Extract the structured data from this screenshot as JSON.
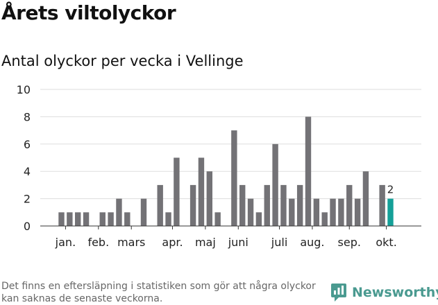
{
  "header": {
    "title": "Årets viltolyckor",
    "subtitle": "Antal olyckor per vecka i Vellinge"
  },
  "footer": {
    "note": "Det finns en eftersläpning i statistiken som gör att några olyckor kan saknas de senaste veckorna.",
    "brand": "Newsworthy"
  },
  "colors": {
    "bar": "#737276",
    "highlight": "#14a098",
    "grid": "#dddddd",
    "brand": "#4a9a90"
  },
  "icons": {
    "brand_logo": "chart-bubble-icon"
  },
  "chart_data": {
    "type": "bar",
    "title": "Antal olyckor per vecka i Vellinge",
    "xlabel": "",
    "ylabel": "",
    "ylim": [
      0,
      10
    ],
    "yticks": [
      0,
      2,
      4,
      6,
      8,
      10
    ],
    "grid": true,
    "weeks": [
      1,
      2,
      3,
      4,
      5,
      6,
      7,
      8,
      9,
      10,
      11,
      12,
      13,
      14,
      15,
      16,
      17,
      18,
      19,
      20,
      21,
      22,
      23,
      24,
      25,
      26,
      27,
      28,
      29,
      30,
      31,
      32,
      33,
      34,
      35,
      36,
      37,
      38,
      39,
      40,
      41,
      42
    ],
    "values": [
      1,
      1,
      1,
      1,
      0,
      1,
      1,
      2,
      1,
      0,
      2,
      0,
      3,
      1,
      5,
      0,
      3,
      5,
      4,
      1,
      0,
      7,
      3,
      2,
      1,
      3,
      6,
      3,
      2,
      3,
      8,
      2,
      1,
      2,
      2,
      3,
      2,
      4,
      0,
      3,
      2,
      0
    ],
    "highlight_week": 41,
    "highlight_label": "2",
    "month_labels": [
      {
        "label": "jan.",
        "week": 1.5
      },
      {
        "label": "feb.",
        "week": 5.5
      },
      {
        "label": "mars",
        "week": 9.5
      },
      {
        "label": "apr.",
        "week": 14.5
      },
      {
        "label": "maj",
        "week": 18.5
      },
      {
        "label": "juni",
        "week": 22.5
      },
      {
        "label": "juli",
        "week": 27.5
      },
      {
        "label": "aug.",
        "week": 31.5
      },
      {
        "label": "sep.",
        "week": 36
      },
      {
        "label": "okt.",
        "week": 40.5
      }
    ]
  }
}
